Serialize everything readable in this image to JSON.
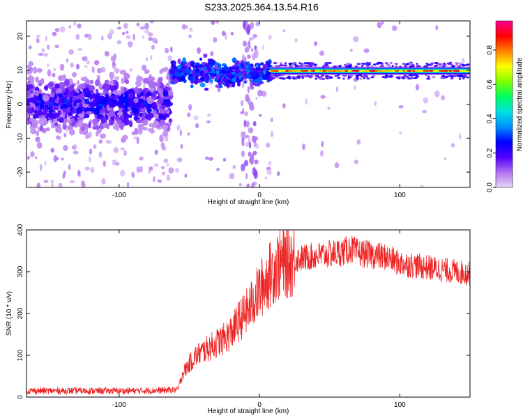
{
  "title": "S233.2025.364.13.54.R16",
  "chart_data": [
    {
      "type": "heatmap",
      "xlabel": "Height of straight line (km)",
      "ylabel": "Frequency (Hz)",
      "xlim": [
        -166,
        150
      ],
      "ylim": [
        -24.5,
        24.5
      ],
      "xticks": [
        -100,
        0,
        100
      ],
      "yticks": [
        -20,
        -10,
        0,
        10,
        20
      ],
      "colorbar": {
        "label": "Normalized spectral amplitude",
        "range": [
          0,
          0.97
        ],
        "ticks": [
          0.0,
          0.2,
          0.4,
          0.6,
          0.8
        ],
        "tick_labels": [
          "0.0",
          "0.2",
          "0.4",
          "0.6",
          "0.8"
        ],
        "colormap": [
          "#e8d8f8",
          "#b070f0",
          "#5000ff",
          "#0000ff",
          "#0090ff",
          "#00e0e0",
          "#00ff60",
          "#80ff00",
          "#ffff00",
          "#ff8000",
          "#ff0000",
          "#ff0090"
        ]
      },
      "regions": [
        {
          "x_range": [
            -166,
            -63
          ],
          "freq_center": 0,
          "freq_spread": 4,
          "amplitude": 0.25
        },
        {
          "x_range": [
            -63,
            8
          ],
          "freq_center": 9.5,
          "freq_spread": 1.5,
          "amplitude": 0.3
        },
        {
          "x_range": [
            8,
            150
          ],
          "freq_center": 9.8,
          "freq_spread": 0.8,
          "amplitude": 0.85
        }
      ]
    },
    {
      "type": "line",
      "xlabel": "Height of straight line (km)",
      "ylabel": "SNR (10 * v/v)",
      "xlim": [
        -166,
        150
      ],
      "ylim": [
        0,
        400
      ],
      "xticks": [
        -100,
        0,
        100
      ],
      "yticks": [
        0,
        100,
        200,
        300,
        400
      ],
      "line_color": "#ee2222",
      "series": [
        {
          "x": [
            -166,
            -150,
            -130,
            -110,
            -90,
            -70,
            -58,
            -55,
            -50,
            -45,
            -40,
            -35,
            -30,
            -25,
            -20,
            -15,
            -10,
            -5,
            0,
            5,
            10,
            15,
            20,
            25,
            30,
            40,
            50,
            60,
            65,
            70,
            80,
            90,
            100,
            110,
            120,
            130,
            140,
            150
          ],
          "values": [
            15,
            15,
            15,
            15,
            15,
            16,
            18,
            55,
            80,
            100,
            110,
            120,
            130,
            140,
            155,
            180,
            200,
            225,
            255,
            280,
            305,
            320,
            325,
            330,
            332,
            338,
            342,
            348,
            355,
            345,
            340,
            335,
            320,
            315,
            310,
            305,
            300,
            295
          ]
        }
      ]
    }
  ]
}
